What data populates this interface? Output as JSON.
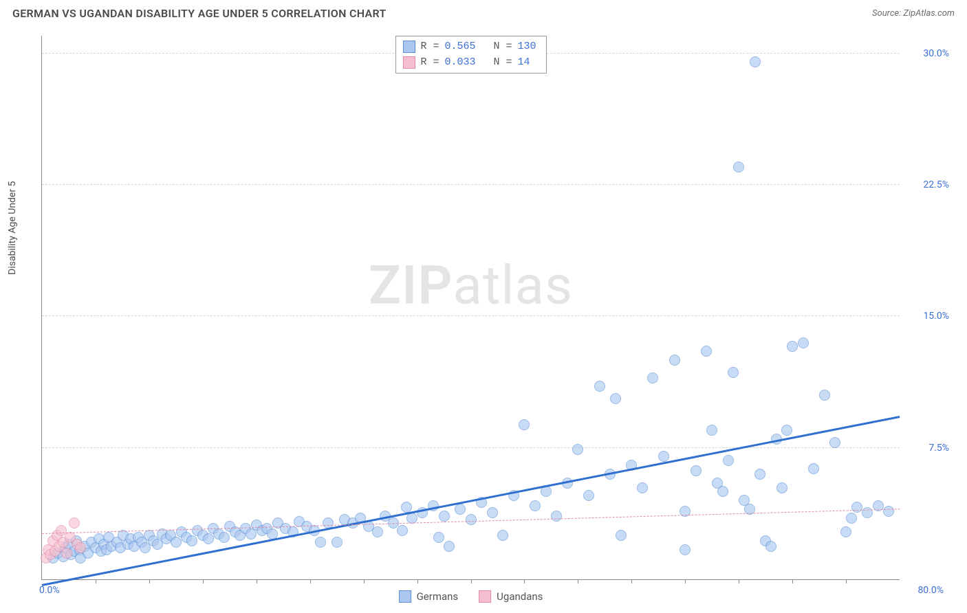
{
  "header": {
    "title": "GERMAN VS UGANDAN DISABILITY AGE UNDER 5 CORRELATION CHART",
    "source": "Source: ZipAtlas.com"
  },
  "chart": {
    "type": "scatter",
    "ylabel": "Disability Age Under 5",
    "watermark_bold": "ZIP",
    "watermark_rest": "atlas",
    "background_color": "#ffffff",
    "grid_color": "#d6d6d6",
    "axis_color": "#888888",
    "label_color": "#3a6fd8",
    "xlim": [
      0,
      80
    ],
    "ylim": [
      0,
      31
    ],
    "y_ticks": [
      7.5,
      15.0,
      22.5,
      30.0
    ],
    "y_tick_labels": [
      "7.5%",
      "15.0%",
      "22.5%",
      "30.0%"
    ],
    "x_origin_label": "0.0%",
    "x_max_label": "80.0%",
    "x_minor_ticks": [
      5,
      10,
      15,
      20,
      25,
      30,
      35,
      40,
      45,
      50,
      55,
      60,
      65,
      70,
      75
    ],
    "marker_radius": 8,
    "marker_border_alpha": 0.45,
    "series": [
      {
        "name": "Germans",
        "fill": "#a9c7ef",
        "stroke": "#5a8fd6",
        "fill_opacity": 0.62,
        "R": "0.565",
        "N": "130",
        "trend": {
          "color": "#2f6fd0",
          "width": 3,
          "dash": "solid",
          "y_at_x0": -0.4,
          "y_at_xmax": 9.2
        },
        "points": [
          [
            1,
            1.2
          ],
          [
            1.5,
            1.5
          ],
          [
            2,
            1.3
          ],
          [
            2.2,
            1.8
          ],
          [
            2.5,
            2.0
          ],
          [
            2.7,
            1.4
          ],
          [
            3,
            1.6
          ],
          [
            3.2,
            2.2
          ],
          [
            3.5,
            1.7
          ],
          [
            3.6,
            1.2
          ],
          [
            4,
            1.9
          ],
          [
            4.3,
            1.5
          ],
          [
            4.6,
            2.1
          ],
          [
            5,
            1.8
          ],
          [
            5.3,
            2.3
          ],
          [
            5.5,
            1.6
          ],
          [
            5.8,
            2.0
          ],
          [
            6,
            1.7
          ],
          [
            6.2,
            2.4
          ],
          [
            6.5,
            1.9
          ],
          [
            7,
            2.1
          ],
          [
            7.3,
            1.8
          ],
          [
            7.6,
            2.5
          ],
          [
            8,
            2.0
          ],
          [
            8.3,
            2.3
          ],
          [
            8.6,
            1.9
          ],
          [
            9,
            2.4
          ],
          [
            9.3,
            2.1
          ],
          [
            9.6,
            1.8
          ],
          [
            10,
            2.5
          ],
          [
            10.4,
            2.2
          ],
          [
            10.8,
            2.0
          ],
          [
            11.2,
            2.6
          ],
          [
            11.6,
            2.3
          ],
          [
            12,
            2.5
          ],
          [
            12.5,
            2.1
          ],
          [
            13,
            2.7
          ],
          [
            13.5,
            2.4
          ],
          [
            14,
            2.2
          ],
          [
            14.5,
            2.8
          ],
          [
            15,
            2.5
          ],
          [
            15.5,
            2.3
          ],
          [
            16,
            2.9
          ],
          [
            16.5,
            2.6
          ],
          [
            17,
            2.4
          ],
          [
            17.5,
            3.0
          ],
          [
            18,
            2.7
          ],
          [
            18.5,
            2.5
          ],
          [
            19,
            2.9
          ],
          [
            19.5,
            2.6
          ],
          [
            20,
            3.1
          ],
          [
            20.5,
            2.8
          ],
          [
            21,
            2.9
          ],
          [
            21.5,
            2.6
          ],
          [
            22,
            3.2
          ],
          [
            22.7,
            2.9
          ],
          [
            23.4,
            2.7
          ],
          [
            24,
            3.3
          ],
          [
            24.7,
            3.0
          ],
          [
            25.4,
            2.8
          ],
          [
            26,
            2.1
          ],
          [
            26.7,
            3.2
          ],
          [
            27.5,
            2.1
          ],
          [
            28.2,
            3.4
          ],
          [
            29,
            3.2
          ],
          [
            29.7,
            3.5
          ],
          [
            30.5,
            3.0
          ],
          [
            31.3,
            2.7
          ],
          [
            32,
            3.6
          ],
          [
            32.8,
            3.2
          ],
          [
            33.6,
            2.8
          ],
          [
            34,
            4.1
          ],
          [
            34.5,
            3.5
          ],
          [
            35.5,
            3.8
          ],
          [
            36.5,
            4.2
          ],
          [
            37,
            2.4
          ],
          [
            37.5,
            3.6
          ],
          [
            38,
            1.9
          ],
          [
            39,
            4.0
          ],
          [
            40,
            3.4
          ],
          [
            41,
            4.4
          ],
          [
            42,
            3.8
          ],
          [
            43,
            2.5
          ],
          [
            44,
            4.8
          ],
          [
            45,
            8.8
          ],
          [
            46,
            4.2
          ],
          [
            47,
            5.0
          ],
          [
            48,
            3.6
          ],
          [
            49,
            5.5
          ],
          [
            50,
            7.4
          ],
          [
            51,
            4.8
          ],
          [
            52,
            11.0
          ],
          [
            53,
            6.0
          ],
          [
            53.5,
            10.3
          ],
          [
            54,
            2.5
          ],
          [
            55,
            6.5
          ],
          [
            56,
            5.2
          ],
          [
            57,
            11.5
          ],
          [
            58,
            7.0
          ],
          [
            59,
            12.5
          ],
          [
            60,
            1.7
          ],
          [
            60,
            3.9
          ],
          [
            61,
            6.2
          ],
          [
            62,
            13.0
          ],
          [
            62.5,
            8.5
          ],
          [
            63,
            5.5
          ],
          [
            63.5,
            5.0
          ],
          [
            64,
            6.8
          ],
          [
            64.5,
            11.8
          ],
          [
            65,
            23.5
          ],
          [
            65.5,
            4.5
          ],
          [
            66,
            4.0
          ],
          [
            66.5,
            29.5
          ],
          [
            67,
            6.0
          ],
          [
            67.5,
            2.2
          ],
          [
            68,
            1.9
          ],
          [
            68.5,
            8.0
          ],
          [
            69,
            5.2
          ],
          [
            69.5,
            8.5
          ],
          [
            70,
            13.3
          ],
          [
            71,
            13.5
          ],
          [
            72,
            6.3
          ],
          [
            73,
            10.5
          ],
          [
            74,
            7.8
          ],
          [
            75,
            2.7
          ],
          [
            75.5,
            3.5
          ],
          [
            76,
            4.1
          ],
          [
            77,
            3.8
          ],
          [
            78,
            4.2
          ],
          [
            79,
            3.9
          ]
        ]
      },
      {
        "name": "Ugandans",
        "fill": "#f6bfcf",
        "stroke": "#e08aa5",
        "fill_opacity": 0.62,
        "R": "0.033",
        "N": "14",
        "trend": {
          "color": "#e08aa5",
          "width": 1,
          "dash": "4 4",
          "y_at_x0": 2.6,
          "y_at_xmax": 4.0
        },
        "points": [
          [
            0.4,
            1.2
          ],
          [
            0.6,
            1.7
          ],
          [
            0.8,
            1.4
          ],
          [
            1.0,
            2.2
          ],
          [
            1.2,
            1.6
          ],
          [
            1.4,
            2.5
          ],
          [
            1.6,
            1.9
          ],
          [
            1.8,
            2.8
          ],
          [
            2.0,
            2.1
          ],
          [
            2.3,
            1.5
          ],
          [
            2.6,
            2.4
          ],
          [
            3.0,
            3.2
          ],
          [
            3.3,
            2.0
          ],
          [
            3.6,
            1.8
          ]
        ]
      }
    ],
    "legend_bottom": [
      {
        "label": "Germans",
        "swatch": "#a9c7ef",
        "border": "#5a8fd6"
      },
      {
        "label": "Ugandans",
        "swatch": "#f6bfcf",
        "border": "#e08aa5"
      }
    ]
  }
}
